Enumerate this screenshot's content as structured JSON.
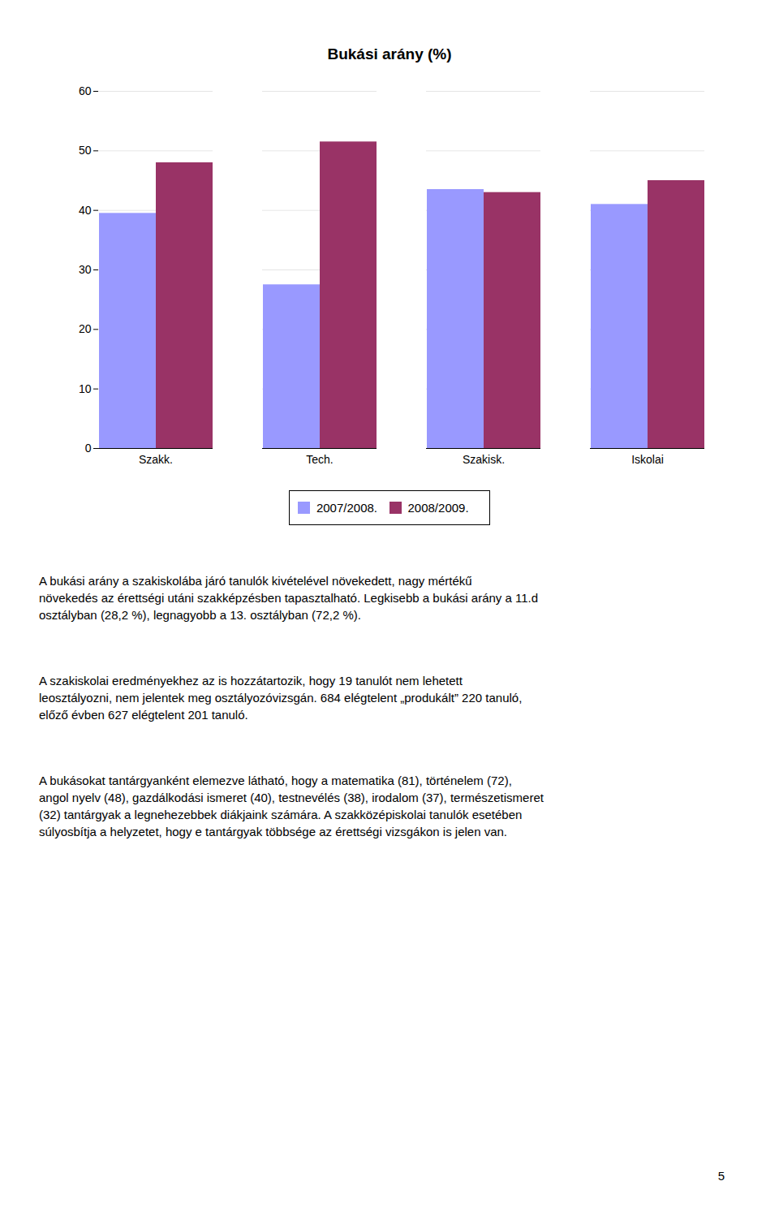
{
  "chart_data": {
    "type": "bar",
    "title": "Bukási arány (%)",
    "categories": [
      "Szakk.",
      "Tech.",
      "Szakisk.",
      "Iskolai"
    ],
    "series": [
      {
        "name": "2007/2008.",
        "color": "#9999FF",
        "values": [
          39.5,
          27.5,
          43.5,
          41.0
        ]
      },
      {
        "name": "2008/2009.",
        "color": "#993366",
        "values": [
          48.0,
          51.5,
          43.0,
          45.0
        ]
      }
    ],
    "ylim": [
      0,
      60
    ],
    "yticks": [
      0,
      10,
      20,
      30,
      40,
      50,
      60
    ],
    "grid": true,
    "legend": "bottom",
    "annotations": [
      "A bukási arány a szakiskolába járó tanulók kivételével növekedett, nagy mértékű\nnövekedés az érettségi utáni szakképzésben tapasztalható. Legkisebb a bukási arány a 11.d\nosztályban (28,2 %), legnagyobb a 13. osztályban (72,2 %).",
      "A szakiskolai eredményekhez az is hozzátartozik, hogy 19 tanulót nem lehetett\nleosztályozni, nem jelentek meg osztályozóvizsgán. 684 elégtelent „produkált” 220 tanuló,\nelőző évben 627 elégtelent 201 tanuló.",
      "A bukásokat tantárgyanként elemezve látható, hogy a matematika (81), történelem (72),\nangol nyelv (48), gazdálkodási ismeret (40), testnevélés (38), irodalom (37), természetismeret\n(32) tantárgyak a legnehezebbek diákjaink számára. A szakközépiskolai tanulók esetében\nsúlyosbítja a helyzetet, hogy e tantárgyak többsége az érettségi vizsgákon is jelen van.",
      "5"
    ]
  }
}
